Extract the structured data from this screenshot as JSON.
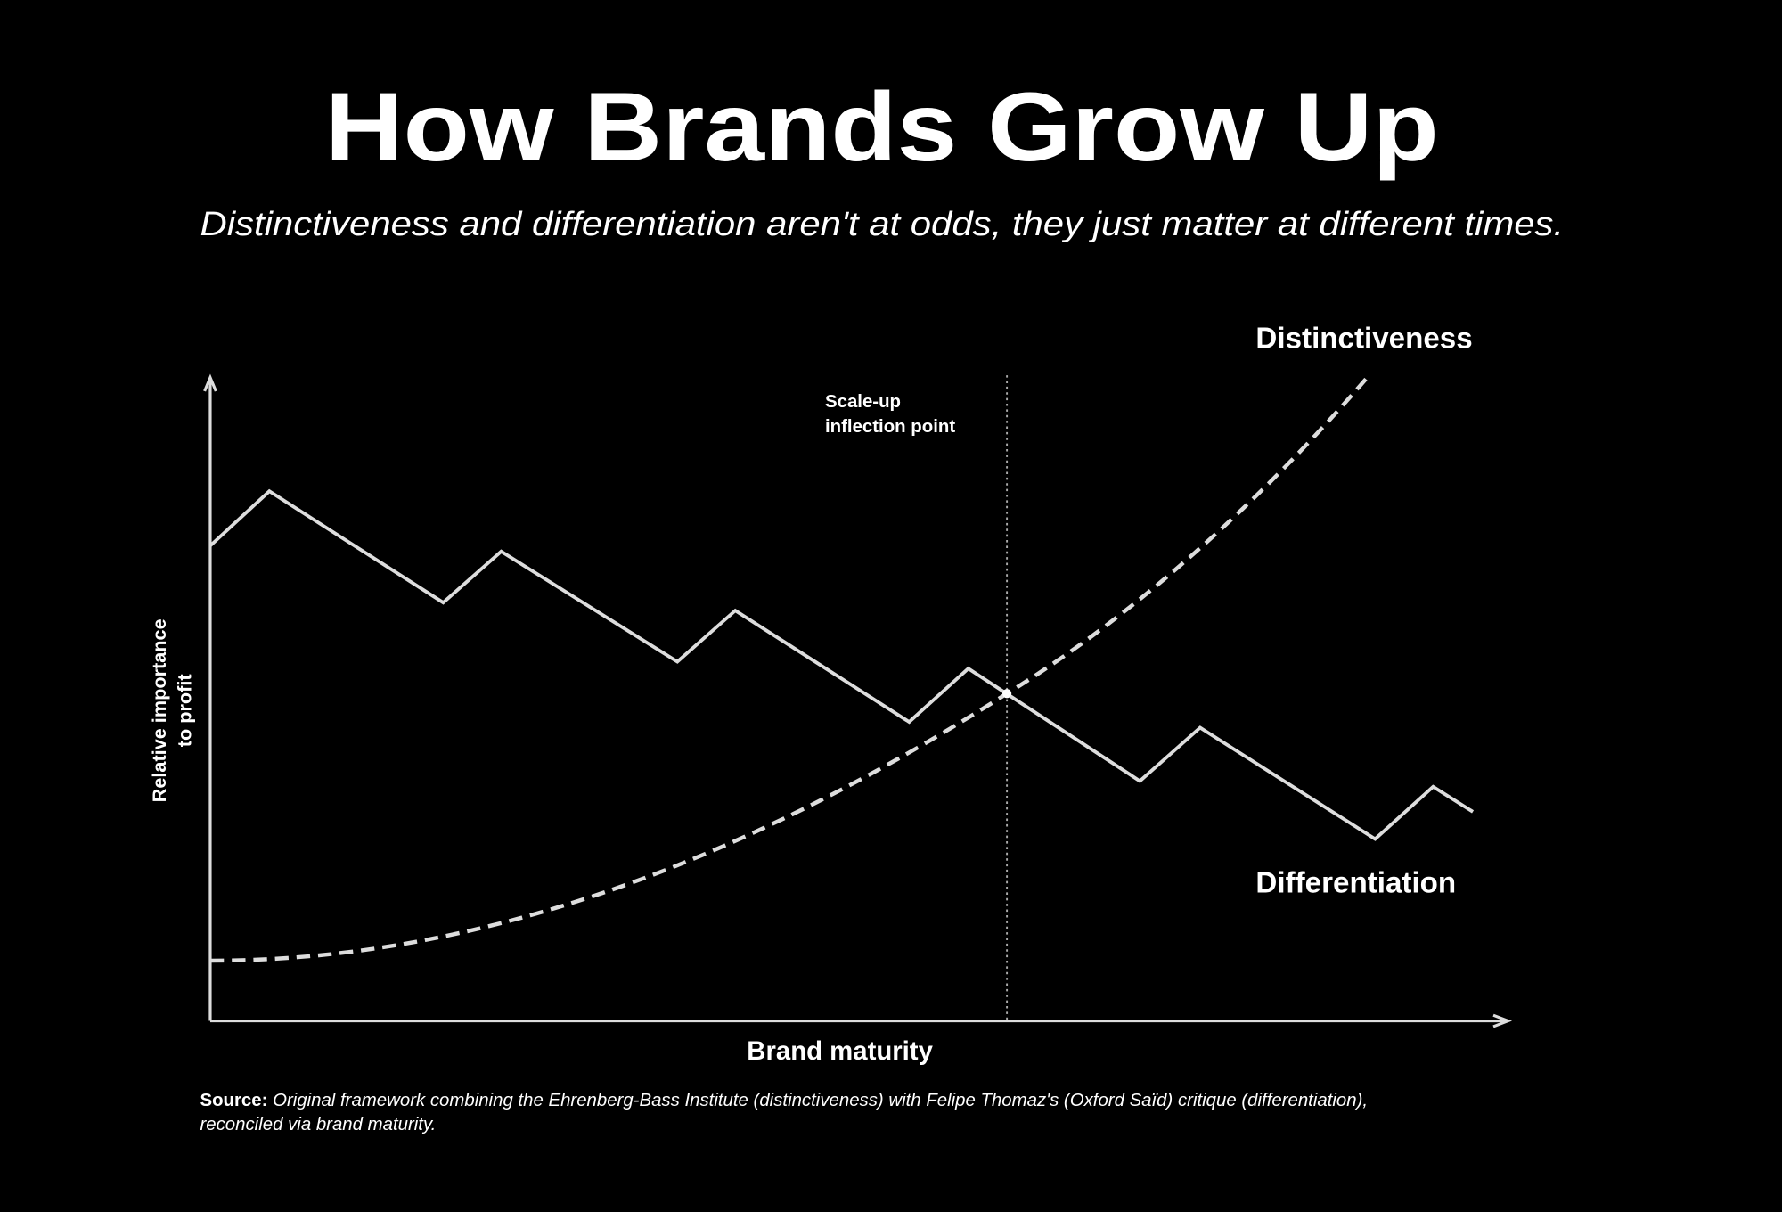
{
  "title": "How Brands Grow Up",
  "subtitle": "Distinctiveness and differentiation aren't at odds, they just matter at different times.",
  "labels": {
    "distinctiveness": "Distinctiveness",
    "differentiation": "Differentiation",
    "inflection": [
      "Scale-up",
      "inflection point"
    ],
    "y_axis": [
      "Relative importance",
      "to profit"
    ],
    "x_axis": "Brand maturity"
  },
  "source": {
    "label": "Source:",
    "text": "Original framework combining the Ehrenberg-Bass Institute (distinctiveness) with Felipe Thomaz's (Oxford Saïd) critique (differentiation),",
    "text2": "reconciled via brand maturity."
  }
}
